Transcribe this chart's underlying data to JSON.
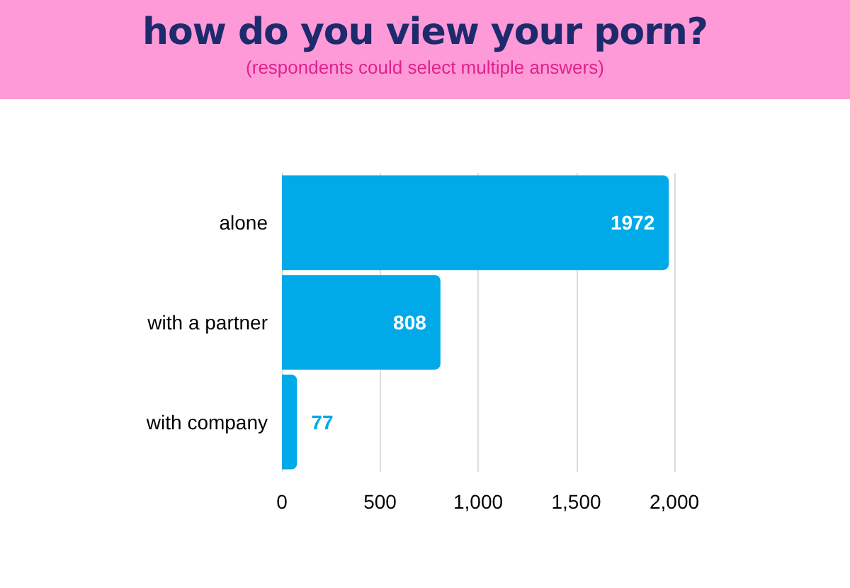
{
  "chart_data": {
    "type": "bar",
    "orientation": "horizontal",
    "title": "how do you view your porn?",
    "subtitle": "(respondents could select multiple answers)",
    "categories": [
      "alone",
      "with a partner",
      "with company"
    ],
    "values": [
      1972,
      808,
      77
    ],
    "color": "#00aae8",
    "xlim": [
      0,
      2000
    ],
    "xticks": [
      0,
      500,
      {
        "value": 1000,
        "label": "1,000"
      },
      {
        "value": 1500,
        "label": "1,500"
      },
      {
        "value": 2000,
        "label": "2,000"
      }
    ],
    "grid": "x",
    "data_labels": true
  }
}
